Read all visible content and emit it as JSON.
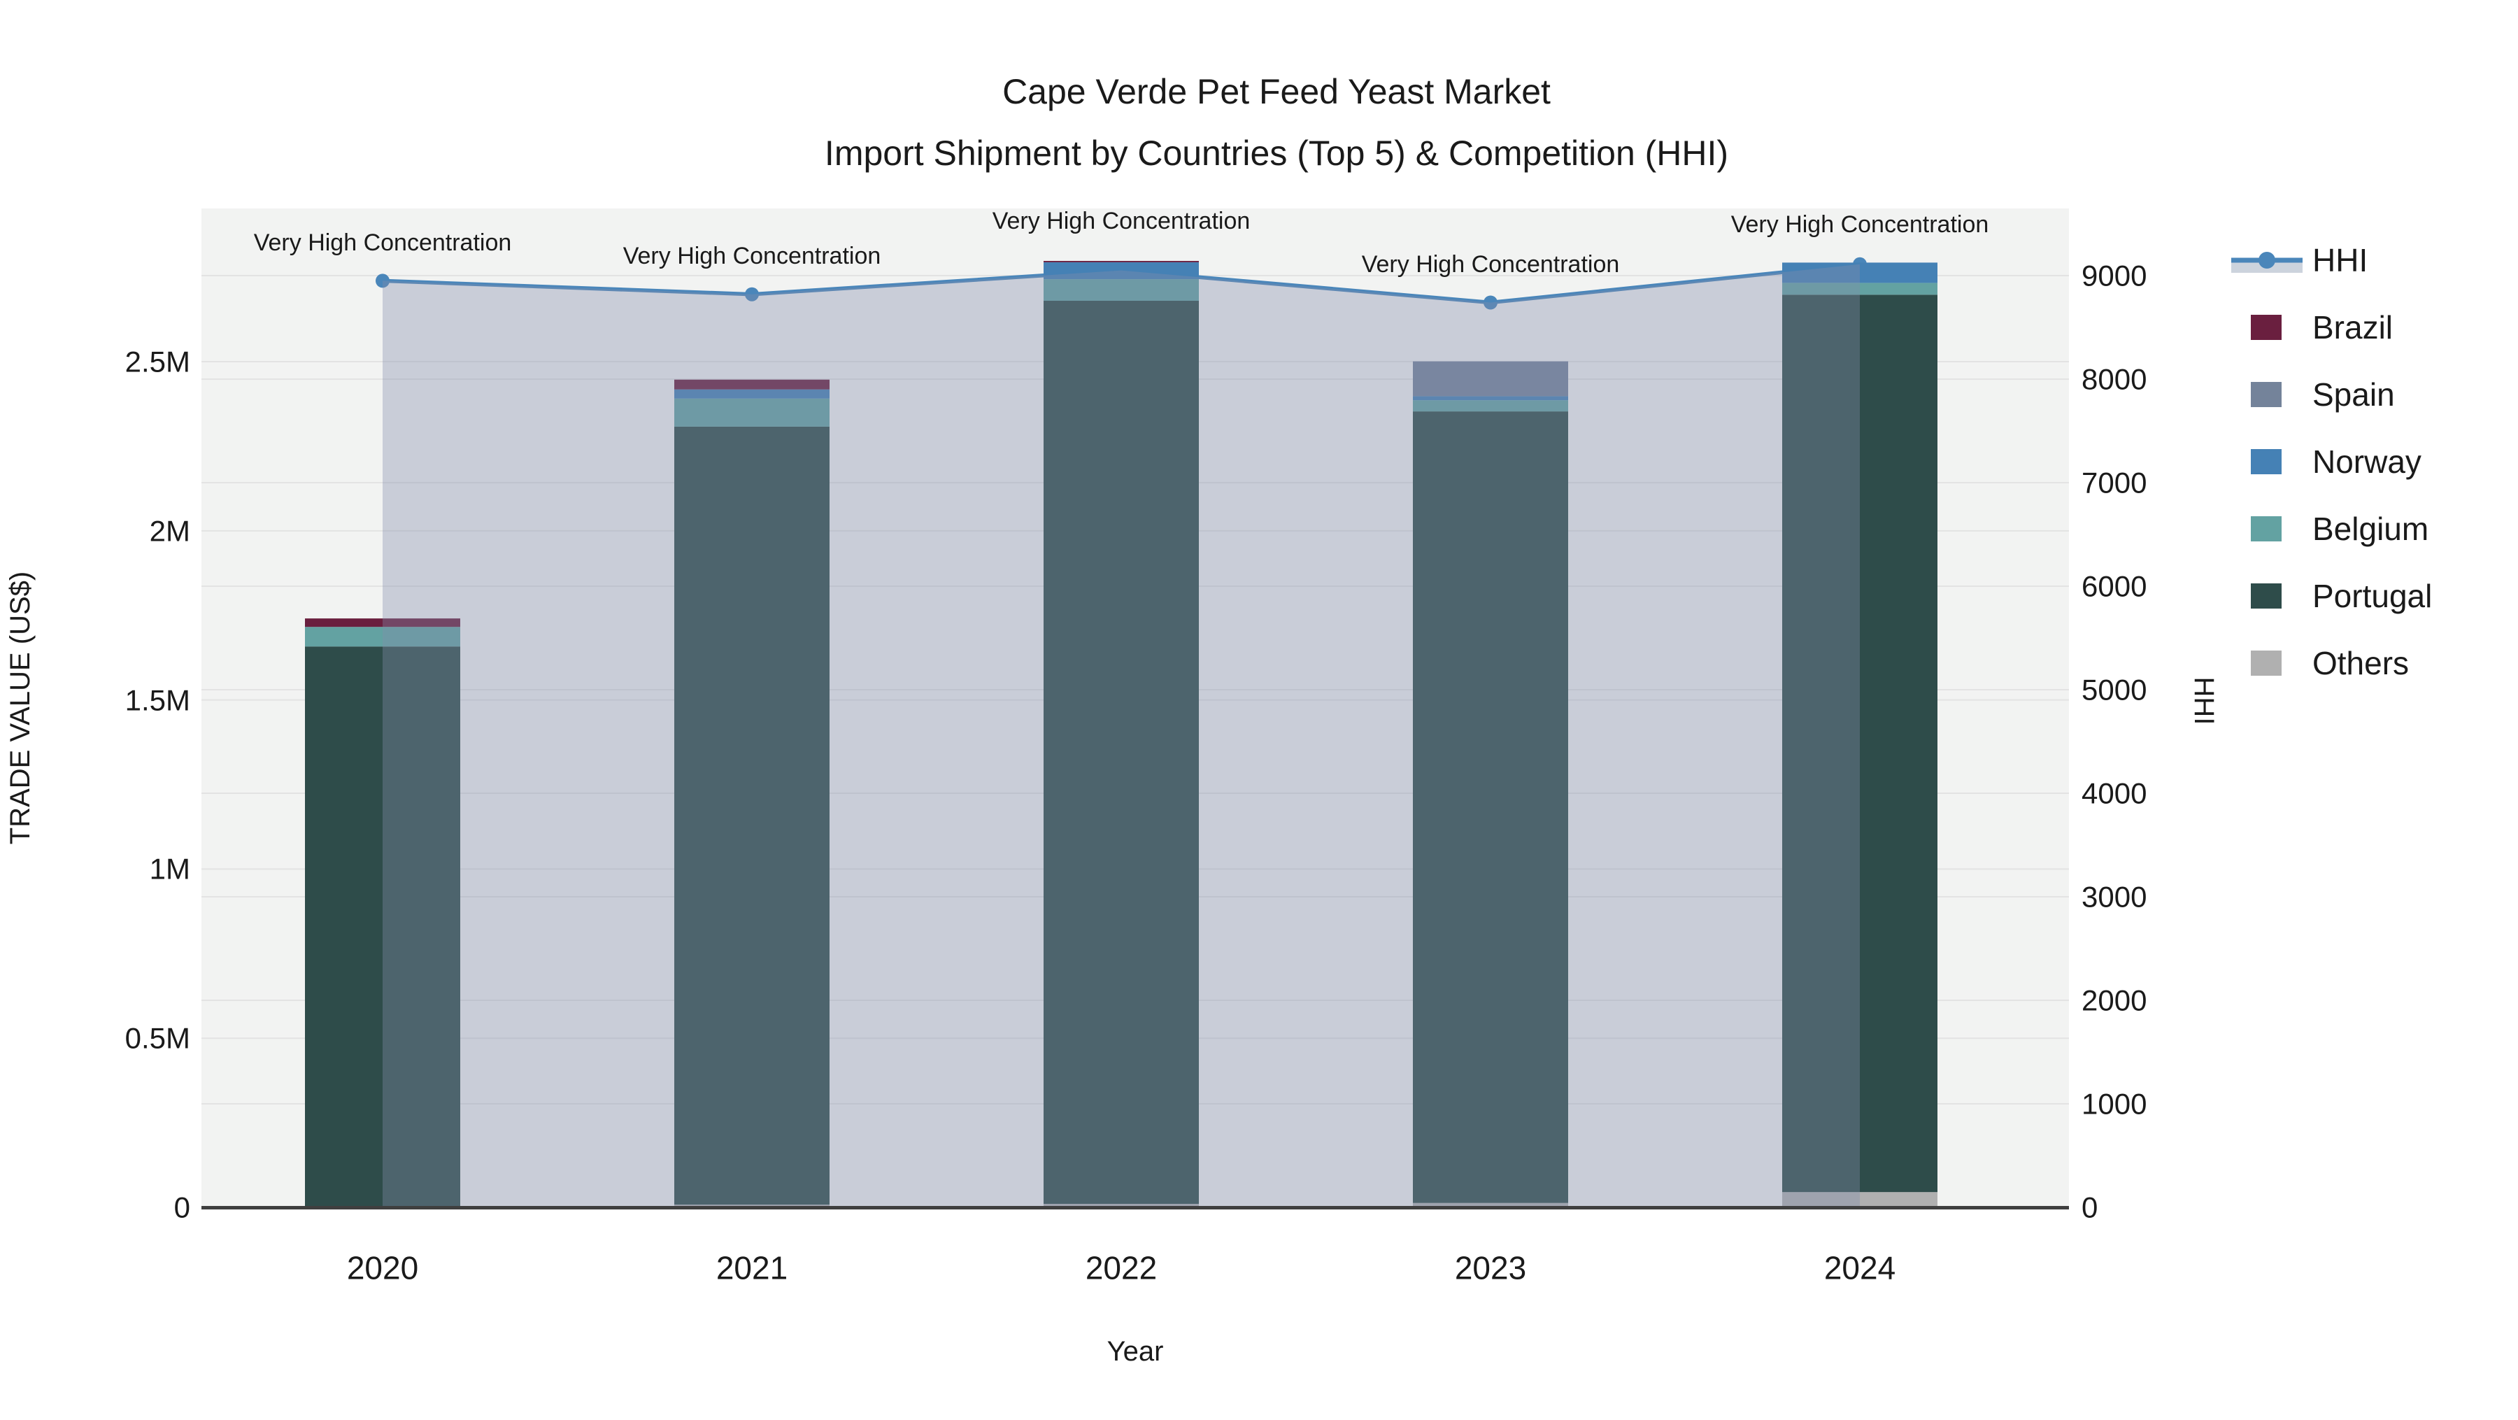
{
  "title": {
    "line1": "Cape Verde Pet Feed Yeast Market",
    "line2": "Import Shipment by Countries (Top 5) & Competition (HHI)"
  },
  "axes": {
    "y1": {
      "title": "TRADE VALUE (US$)",
      "ticks": [
        "0",
        "0.5M",
        "1M",
        "1.5M",
        "2M",
        "2.5M"
      ]
    },
    "y2": {
      "title": "HHI",
      "ticks": [
        "0",
        "1000",
        "2000",
        "3000",
        "4000",
        "5000",
        "6000",
        "7000",
        "8000",
        "9000"
      ]
    },
    "x": {
      "title": "Year",
      "ticks": [
        "2020",
        "2021",
        "2022",
        "2023",
        "2024"
      ]
    }
  },
  "annotations": [
    "Very High Concentration",
    "Very High Concentration",
    "Very High Concentration",
    "Very High Concentration",
    "Very High Concentration"
  ],
  "legend": [
    {
      "label": "HHI",
      "color": "#4a86ba"
    },
    {
      "label": "Brazil",
      "color": "#6a1f3f"
    },
    {
      "label": "Spain",
      "color": "#74839a"
    },
    {
      "label": "Norway",
      "color": "#4581b5"
    },
    {
      "label": "Belgium",
      "color": "#63a2a2"
    },
    {
      "label": "Portugal",
      "color": "#2e4c4a"
    },
    {
      "label": "Others",
      "color": "#b0b0b0"
    }
  ],
  "colors": {
    "hhi_line": "#4a86ba",
    "hhi_fill": "rgba(130,140,170,0.37)",
    "hhi_legend_band": "#ccd3dd",
    "plot_bg": "#f2f3f2",
    "grid": "#e3e3e3",
    "axis_line": "#3f3f3f"
  },
  "chart_data": {
    "type": "bar",
    "subtype": "stacked-bar-with-line",
    "categories": [
      "2020",
      "2021",
      "2022",
      "2023",
      "2024"
    ],
    "stack_order_bottom_to_top": [
      "Others",
      "Portugal",
      "Belgium",
      "Norway",
      "Spain",
      "Brazil"
    ],
    "series": [
      {
        "name": "Brazil",
        "color": "#6a1f3f",
        "values": [
          25000,
          29000,
          4000,
          0,
          0
        ]
      },
      {
        "name": "Spain",
        "color": "#74839a",
        "values": [
          0,
          0,
          0,
          103000,
          0
        ]
      },
      {
        "name": "Norway",
        "color": "#4581b5",
        "values": [
          0,
          27000,
          50000,
          12000,
          60000
        ]
      },
      {
        "name": "Belgium",
        "color": "#63a2a2",
        "values": [
          58000,
          83000,
          64000,
          33000,
          35000
        ]
      },
      {
        "name": "Portugal",
        "color": "#2e4c4a",
        "values": [
          1658000,
          2300000,
          2670000,
          2340000,
          2653000
        ]
      },
      {
        "name": "Others",
        "color": "#b0b0b0",
        "values": [
          0,
          8000,
          10000,
          13000,
          45000
        ]
      }
    ],
    "line": {
      "name": "HHI",
      "color": "#4a86ba",
      "fill": "rgba(130,140,170,0.37)",
      "values": [
        8950,
        8820,
        9050,
        8740,
        9110
      ]
    },
    "title": "Cape Verde Pet Feed Yeast Market Import Shipment by Countries (Top 5) & Competition (HHI)",
    "xlabel": "Year",
    "ylabel": "TRADE VALUE (US$)",
    "y2label": "HHI",
    "y1lim": [
      0,
      2953000
    ],
    "y2lim": [
      0,
      9649
    ],
    "grid": true,
    "legend_position": "right"
  }
}
